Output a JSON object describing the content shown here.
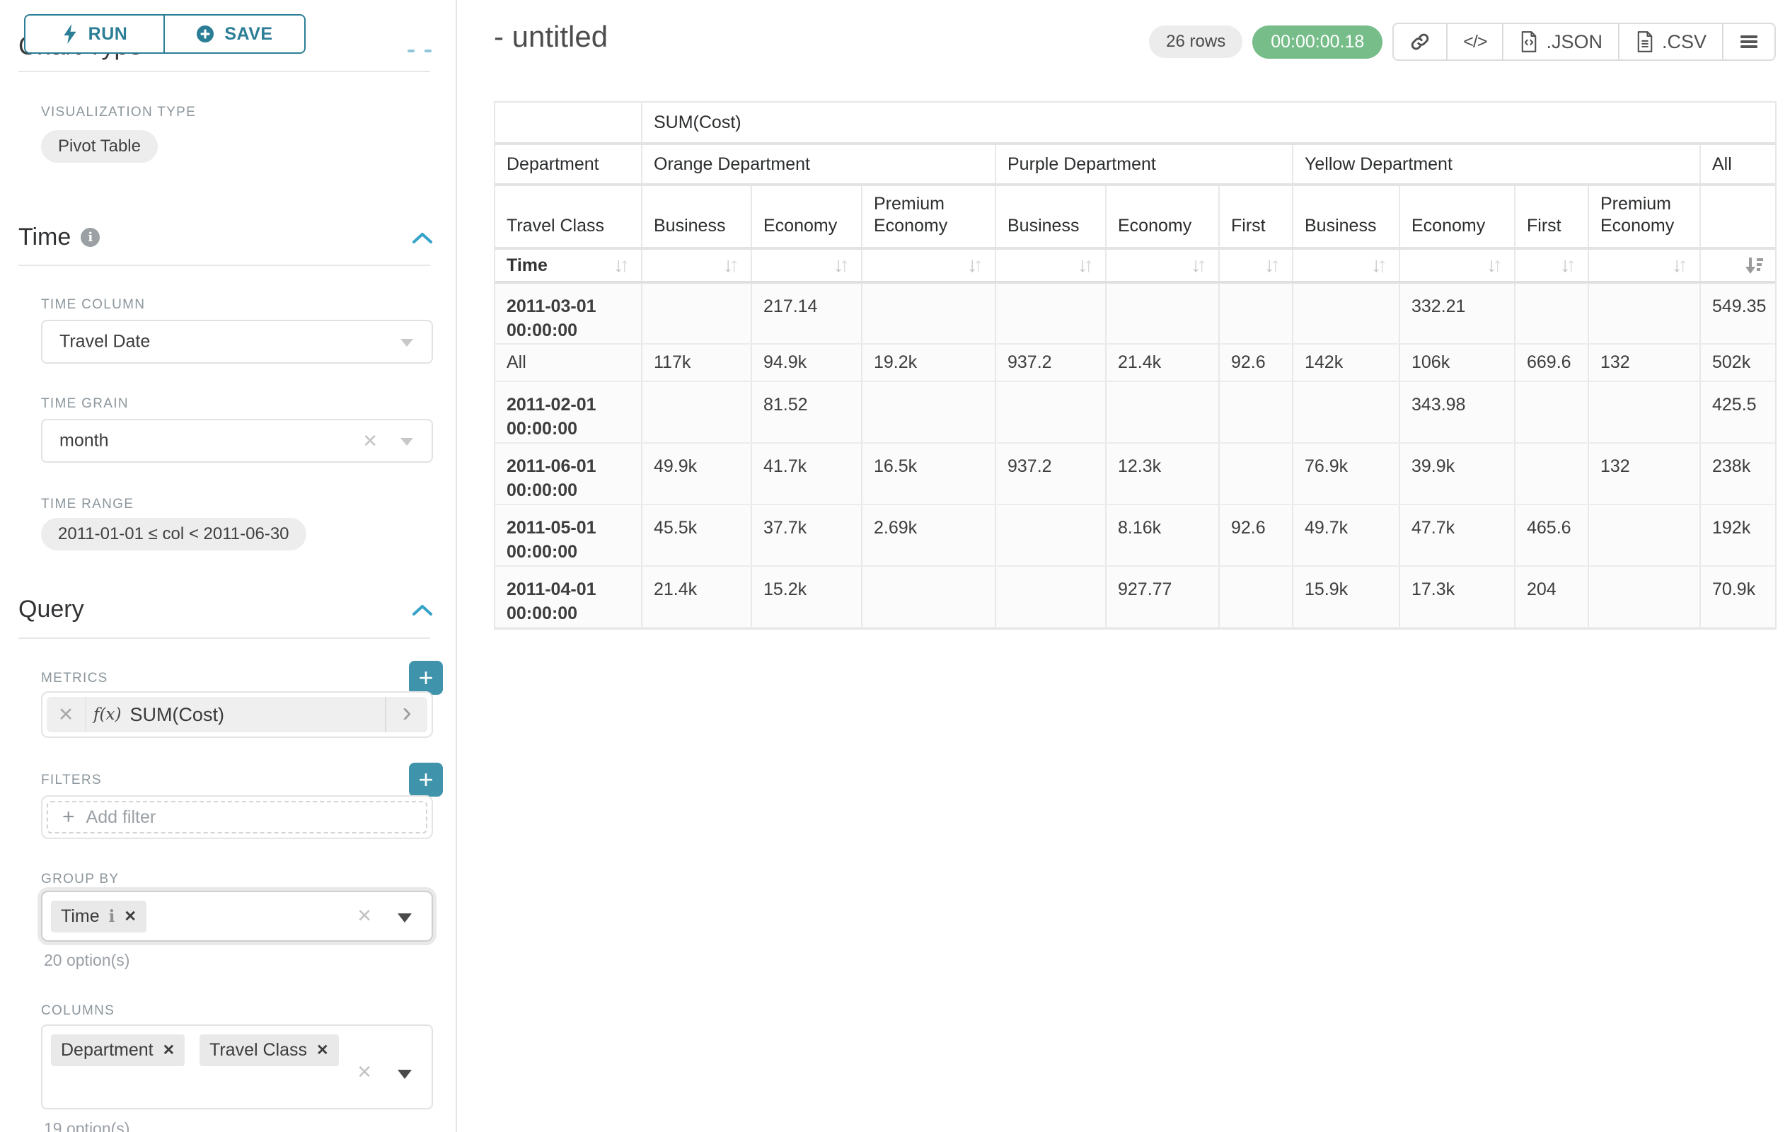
{
  "sidebar": {
    "run_button": "RUN",
    "save_button": "SAVE",
    "clipped_heading": "Chart Type",
    "visualization": {
      "label": "VISUALIZATION TYPE",
      "value": "Pivot Table"
    },
    "time": {
      "title": "Time",
      "time_column_label": "TIME COLUMN",
      "time_column_value": "Travel Date",
      "time_grain_label": "TIME GRAIN",
      "time_grain_value": "month",
      "time_range_label": "TIME RANGE",
      "time_range_value": "2011-01-01 ≤ col < 2011-06-30"
    },
    "query": {
      "title": "Query",
      "metrics_label": "METRICS",
      "metric_fx": "f(x)",
      "metric_value": "SUM(Cost)",
      "filters_label": "FILTERS",
      "add_filter_placeholder": "Add filter",
      "group_by_label": "GROUP BY",
      "group_by_tags": [
        "Time"
      ],
      "group_by_hint": "20 option(s)",
      "columns_label": "COLUMNS",
      "columns_tags": [
        "Department",
        "Travel Class"
      ],
      "columns_hint": "19 option(s)"
    }
  },
  "header": {
    "title": "- untitled",
    "row_count_badge": "26 rows",
    "timer_badge": "00:00:00.18",
    "export_json_label": ".JSON",
    "export_csv_label": ".CSV"
  },
  "colors": {
    "accent_teal": "#2b7e96",
    "plus_button_teal": "#3f93ab",
    "chevron_blue": "#35a3c9",
    "timer_green": "#77bd8a"
  },
  "pivot_table": {
    "metric_label": "SUM(Cost)",
    "col_dim_label": "Department",
    "sub_dim_label": "Travel Class",
    "row_dim_label": "Time",
    "sorted_column": "All",
    "sort_direction": "desc",
    "col_groups": [
      {
        "label": "Orange Department",
        "children": [
          "Business",
          "Economy",
          "Premium Economy"
        ]
      },
      {
        "label": "Purple Department",
        "children": [
          "Business",
          "Economy",
          "First"
        ]
      },
      {
        "label": "Yellow Department",
        "children": [
          "Business",
          "Economy",
          "First",
          "Premium Economy"
        ]
      },
      {
        "label": "All",
        "children": [
          ""
        ]
      }
    ],
    "rows": [
      {
        "label": "2011-03-01 00:00:00",
        "values": [
          "",
          "217.14",
          "",
          "",
          "",
          "",
          "",
          "332.21",
          "",
          "",
          "549.35"
        ]
      },
      {
        "label": "All",
        "values": [
          "117k",
          "94.9k",
          "19.2k",
          "937.2",
          "21.4k",
          "92.6",
          "142k",
          "106k",
          "669.6",
          "132",
          "502k"
        ]
      },
      {
        "label": "2011-02-01 00:00:00",
        "values": [
          "",
          "81.52",
          "",
          "",
          "",
          "",
          "",
          "343.98",
          "",
          "",
          "425.5"
        ]
      },
      {
        "label": "2011-06-01 00:00:00",
        "values": [
          "49.9k",
          "41.7k",
          "16.5k",
          "937.2",
          "12.3k",
          "",
          "76.9k",
          "39.9k",
          "",
          "132",
          "238k"
        ]
      },
      {
        "label": "2011-05-01 00:00:00",
        "values": [
          "45.5k",
          "37.7k",
          "2.69k",
          "",
          "8.16k",
          "92.6",
          "49.7k",
          "47.7k",
          "465.6",
          "",
          "192k"
        ]
      },
      {
        "label": "2011-04-01 00:00:00",
        "values": [
          "21.4k",
          "15.2k",
          "",
          "",
          "927.77",
          "",
          "15.9k",
          "17.3k",
          "204",
          "",
          "70.9k"
        ]
      }
    ]
  }
}
